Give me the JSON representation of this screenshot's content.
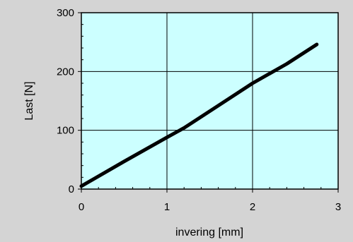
{
  "chart_data": {
    "type": "line",
    "xlabel": "invering [mm]",
    "ylabel": "Last  [N]",
    "xlim": [
      0,
      3
    ],
    "ylim": [
      0,
      300
    ],
    "xticks": [
      0,
      1,
      2,
      3
    ],
    "yticks": [
      0,
      100,
      200,
      300
    ],
    "grid": true,
    "colors": {
      "plot_background": "#ccffff",
      "figure_background": "#d4d4d4",
      "line": "#000000"
    },
    "series": [
      {
        "x": [
          0,
          0.5,
          1.0,
          1.2,
          1.6,
          2.0,
          2.4,
          2.75
        ],
        "y": [
          5,
          47,
          88,
          104,
          142,
          180,
          213,
          246
        ]
      }
    ]
  }
}
